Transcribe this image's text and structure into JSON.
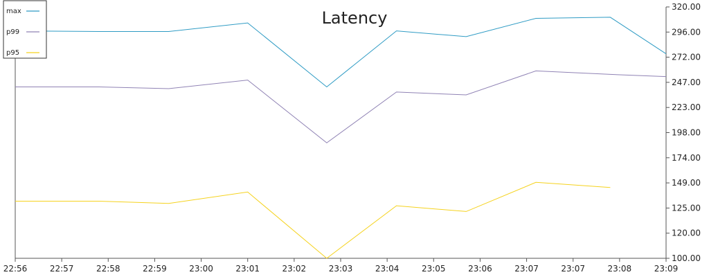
{
  "chart_data": {
    "type": "line",
    "title": "Latency",
    "x_ticks": [
      "22:56",
      "22:57",
      "22:58",
      "22:59",
      "23:00",
      "23:01",
      "23:02",
      "23:03",
      "23:04",
      "23:05",
      "23:06",
      "23:07",
      "23:07",
      "23:08",
      "23:09"
    ],
    "y_ticks": [
      "320.00",
      "296.00",
      "272.00",
      "247.00",
      "223.00",
      "198.00",
      "174.00",
      "149.00",
      "125.00",
      "120.00",
      "100.00"
    ],
    "x_range": [
      0,
      14
    ],
    "ylim": [
      100,
      320
    ],
    "legend_position": "top-left",
    "grid": false,
    "series": [
      {
        "name": "max",
        "color": "#2e9bc4",
        "points": [
          [
            0,
            299
          ],
          [
            1.8,
            298.5
          ],
          [
            3.3,
            298.5
          ],
          [
            5,
            306
          ],
          [
            6.7,
            250
          ],
          [
            8.2,
            299
          ],
          [
            9.7,
            294
          ],
          [
            11.2,
            310
          ],
          [
            12.8,
            311
          ],
          [
            14.4,
            279
          ]
        ]
      },
      {
        "name": "p99",
        "color": "#8f82b4",
        "points": [
          [
            0,
            250
          ],
          [
            1.8,
            250
          ],
          [
            3.3,
            248.5
          ],
          [
            5,
            256
          ],
          [
            6.7,
            201
          ],
          [
            8.2,
            245.5
          ],
          [
            9.7,
            243
          ],
          [
            11.2,
            264
          ],
          [
            12.8,
            261
          ],
          [
            14.4,
            259
          ]
        ]
      },
      {
        "name": "p95",
        "color": "#f5d21c",
        "points": [
          [
            0,
            150
          ],
          [
            1.8,
            150
          ],
          [
            3.3,
            148
          ],
          [
            5,
            158
          ],
          [
            6.7,
            100
          ],
          [
            8.2,
            146
          ],
          [
            9.7,
            141
          ],
          [
            11.2,
            166.5
          ],
          [
            12.8,
            162
          ]
        ]
      }
    ]
  }
}
